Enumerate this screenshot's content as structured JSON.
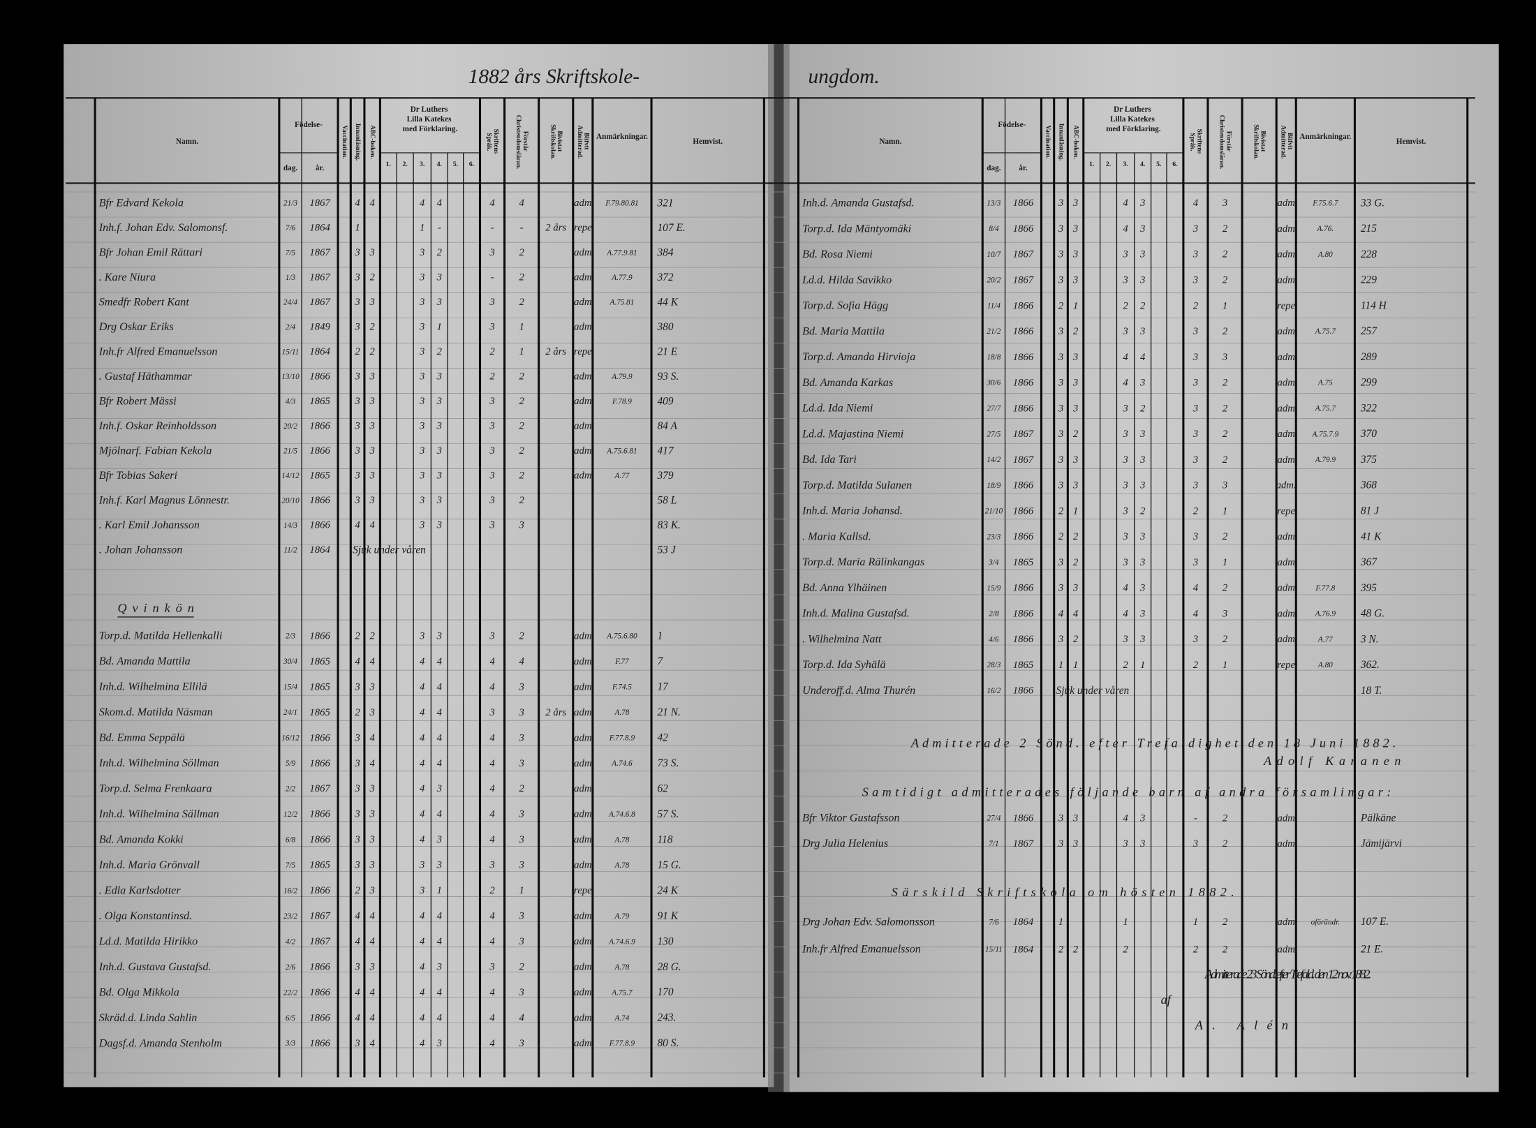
{
  "pages": [
    {
      "title": "1882 års Skriftskole-",
      "headers": [
        "Namn.",
        "Födelse-",
        "dag.",
        "år.",
        "Vaccination.",
        "Innanläsning.",
        "ABC-boken.",
        "Dr Luthers Lilla Katekes med Förklaring.",
        "1.",
        "2.",
        "3.",
        "4.",
        "5.",
        "6.",
        "Skriftens Språk.",
        "Förstår Christendomsläran.",
        "Bivistat Skriftskolan.",
        "Blifvit Admitterad.",
        "Anmärkningar.",
        "Hemvist."
      ],
      "blocks": [
        {
          "row": [
            "Bfr Edvard Kekola",
            "21/3",
            "1867",
            "4",
            "4",
            "4",
            "4",
            "4",
            "4",
            null,
            "adm",
            "F.79.80.81",
            "321"
          ]
        },
        {
          "row": [
            "Inh.f. Johan Edv. Salomonsf.",
            "7/6",
            "1864",
            "1",
            null,
            "1",
            "-",
            "-",
            "-",
            "2 års",
            "repe",
            null,
            "107 E."
          ]
        },
        {
          "row": [
            "Bfr Johan Emil Rättari",
            "7/5",
            "1867",
            "3",
            "3",
            "3",
            "2",
            "3",
            "2",
            null,
            "adm",
            "A.77.9.81",
            "384"
          ]
        },
        {
          "row": [
            ". Kare Niura",
            "1/3",
            "1867",
            "3",
            "2",
            "3",
            "3",
            "-",
            "2",
            null,
            "adm",
            "A.77.9",
            "372"
          ]
        },
        {
          "row": [
            "Smedfr Robert Kant",
            "24/4",
            "1867",
            "3",
            "3",
            "3",
            "3",
            "3",
            "2",
            null,
            "adm",
            "A.75.81",
            "44 K"
          ]
        },
        {
          "row": [
            "Drg Oskar Eriks",
            "2/4",
            "1849",
            "3",
            "2",
            "3",
            "1",
            "3",
            "1",
            null,
            "adm",
            null,
            "380"
          ]
        },
        {
          "row": [
            "Inh.fr Alfred Emanuelsson",
            "15/11",
            "1864",
            "2",
            "2",
            "3",
            "2",
            "2",
            "1",
            "2 års",
            "repe",
            null,
            "21 E"
          ]
        },
        {
          "row": [
            ". Gustaf Häthammar",
            "13/10",
            "1866",
            "3",
            "3",
            "3",
            "3",
            "2",
            "2",
            null,
            "adm",
            "A.79.9",
            "93 S."
          ]
        },
        {
          "row": [
            "Bfr Robert Mässi",
            "4/3",
            "1865",
            "3",
            "3",
            "3",
            "3",
            "3",
            "2",
            null,
            "adm",
            "F.78.9",
            "409"
          ]
        },
        {
          "row": [
            "Inh.f. Oskar Reinholdsson",
            "20/2",
            "1866",
            "3",
            "3",
            "3",
            "3",
            "3",
            "2",
            null,
            "adm",
            null,
            "84 A"
          ]
        },
        {
          "row": [
            "Mjölnarf. Fabian Kekola",
            "21/5",
            "1866",
            "3",
            "3",
            "3",
            "3",
            "3",
            "2",
            null,
            "adm",
            "A.75.6.81",
            "417"
          ]
        },
        {
          "row": [
            "Bfr Tobias Sakeri",
            "14/12",
            "1865",
            "3",
            "3",
            "3",
            "3",
            "3",
            "2",
            null,
            "adm",
            "A.77",
            "379"
          ]
        },
        {
          "row": [
            "Inh.f. Karl Magnus Lönnestr.",
            "20/10",
            "1866",
            "3",
            "3",
            "3",
            "3",
            "3",
            "2",
            null,
            null,
            null,
            "58 L"
          ]
        },
        {
          "row": [
            ". Karl Emil Johansson",
            "14/3",
            "1866",
            "4",
            "4",
            "3",
            "3",
            "3",
            "3",
            null,
            null,
            null,
            "83 K."
          ]
        },
        {
          "row": [
            ". Johan Johansson",
            "11/2",
            "1864",
            "Sjuk under våren",
            null,
            null,
            null,
            null,
            null,
            null,
            null,
            null,
            "53 J"
          ]
        },
        {
          "text": "Qvinkön"
        },
        {
          "row": [
            "Torp.d. Matilda Hellenkalli",
            "2/3",
            "1866",
            "2",
            "2",
            "3",
            "3",
            "3",
            "2",
            null,
            "adm",
            "A.75.6.80",
            "1"
          ]
        },
        {
          "row": [
            "Bd. Amanda Mattila",
            "30/4",
            "1865",
            "4",
            "4",
            "4",
            "4",
            "4",
            "4",
            null,
            "adm",
            "F.77",
            "7"
          ]
        },
        {
          "row": [
            "Inh.d. Wilhelmina Ellilä",
            "15/4",
            "1865",
            "3",
            "3",
            "4",
            "4",
            "4",
            "3",
            null,
            "adm",
            "F.74.5",
            "17"
          ]
        },
        {
          "row": [
            "Skom.d. Matilda Näsman",
            "24/1",
            "1865",
            "2",
            "3",
            "4",
            "4",
            "3",
            "3",
            "2 års",
            "adm",
            "A.78",
            "21 N."
          ]
        },
        {
          "row": [
            "Bd. Emma Seppälä",
            "16/12",
            "1866",
            "3",
            "4",
            "4",
            "4",
            "4",
            "3",
            null,
            "adm",
            "F.77.8.9",
            "42"
          ]
        },
        {
          "row": [
            "Inh.d. Wilhelmina Söllman",
            "5/9",
            "1866",
            "3",
            "4",
            "4",
            "4",
            "4",
            "3",
            null,
            "adm",
            "A.74.6",
            "73 S."
          ]
        },
        {
          "row": [
            "Torp.d. Selma Frenkaara",
            "2/2",
            "1867",
            "3",
            "3",
            "4",
            "3",
            "4",
            "2",
            null,
            "adm",
            null,
            "62"
          ]
        },
        {
          "row": [
            "Inh.d. Wilhelmina Sällman",
            "12/2",
            "1866",
            "3",
            "3",
            "4",
            "4",
            "4",
            "3",
            null,
            "adm",
            "A.74.6.8",
            "57 S."
          ]
        },
        {
          "row": [
            "Bd. Amanda Kokki",
            "6/8",
            "1866",
            "3",
            "3",
            "4",
            "3",
            "4",
            "3",
            null,
            "adm",
            "A.78",
            "118"
          ]
        },
        {
          "row": [
            "Inh.d. Maria Grönvall",
            "7/5",
            "1865",
            "3",
            "3",
            "3",
            "3",
            "3",
            "3",
            null,
            "adm",
            "A.78",
            "15 G."
          ]
        },
        {
          "row": [
            ". Edla Karlsdotter",
            "16/2",
            "1866",
            "2",
            "3",
            "3",
            "1",
            "2",
            "1",
            null,
            "repe",
            null,
            "24 K"
          ]
        },
        {
          "row": [
            ". Olga Konstantinsd.",
            "23/2",
            "1867",
            "4",
            "4",
            "4",
            "4",
            "4",
            "3",
            null,
            "adm",
            "A.79",
            "91 K"
          ]
        },
        {
          "row": [
            "Ld.d. Matilda Hirikko",
            "4/2",
            "1867",
            "4",
            "4",
            "4",
            "4",
            "4",
            "3",
            null,
            "adm",
            "A.74.6.9",
            "130"
          ]
        },
        {
          "row": [
            "Inh.d. Gustava Gustafsd.",
            "2/6",
            "1866",
            "3",
            "3",
            "4",
            "3",
            "3",
            "2",
            null,
            "adm",
            "A.78",
            "28 G."
          ]
        },
        {
          "row": [
            "Bd. Olga Mikkola",
            "22/2",
            "1866",
            "4",
            "4",
            "4",
            "4",
            "4",
            "3",
            null,
            "adm",
            "A.75.7",
            "170"
          ]
        },
        {
          "row": [
            "Skräd.d. Linda Sahlin",
            "6/5",
            "1866",
            "4",
            "4",
            "4",
            "4",
            "4",
            "4",
            null,
            "adm",
            "A.74",
            "243."
          ]
        },
        {
          "row": [
            "Dagsf.d. Amanda Stenholm",
            "3/3",
            "1866",
            "3",
            "4",
            "4",
            "3",
            "4",
            "3",
            null,
            "adm",
            "F.77.8.9",
            "80 S."
          ]
        }
      ]
    },
    {
      "title": "ungdom.",
      "headers": [
        "Namn.",
        "Födelse-",
        "dag.",
        "år.",
        "Vaccination.",
        "Innanläsning.",
        "ABC-boken.",
        "Dr Luthers Lilla Katekes med Förklaring.",
        "1.",
        "2.",
        "3.",
        "4.",
        "5.",
        "6.",
        "Skriftens Språk.",
        "Förstår Christendomsläran.",
        "Bivistat Skriftskolan.",
        "Blifvit Admitterad.",
        "Anmärkningar.",
        "Hemvist."
      ],
      "blocks": [
        {
          "row": [
            "Inh.d. Amanda Gustafsd.",
            "13/3",
            "1866",
            "3",
            "3",
            "4",
            "3",
            "4",
            "3",
            null,
            "adm",
            "F.75.6.7",
            "33 G."
          ]
        },
        {
          "row": [
            "Torp.d. Ida Mäntyomäki",
            "8/4",
            "1866",
            "3",
            "3",
            "4",
            "3",
            "3",
            "2",
            null,
            "adm",
            "A.76.",
            "215"
          ]
        },
        {
          "row": [
            "Bd. Rosa Niemi",
            "10/7",
            "1867",
            "3",
            "3",
            "3",
            "3",
            "3",
            "2",
            null,
            "adm",
            "A.80",
            "228"
          ]
        },
        {
          "row": [
            "Ld.d. Hilda Savikko",
            "20/2",
            "1867",
            "3",
            "3",
            "3",
            "3",
            "3",
            "2",
            null,
            "adm",
            null,
            "229"
          ]
        },
        {
          "row": [
            "Torp.d. Sofia Hägg",
            "11/4",
            "1866",
            "2",
            "1",
            "2",
            "2",
            "2",
            "1",
            null,
            "repe",
            null,
            "114 H"
          ]
        },
        {
          "row": [
            "Bd. Maria Mattila",
            "21/2",
            "1866",
            "3",
            "2",
            "3",
            "3",
            "3",
            "2",
            null,
            "adm",
            "A.75.7",
            "257"
          ]
        },
        {
          "row": [
            "Torp.d. Amanda Hirvioja",
            "18/8",
            "1866",
            "3",
            "3",
            "4",
            "4",
            "3",
            "3",
            null,
            "adm",
            null,
            "289"
          ]
        },
        {
          "row": [
            "Bd. Amanda Karkas",
            "30/6",
            "1866",
            "3",
            "3",
            "4",
            "3",
            "3",
            "2",
            null,
            "adm",
            "A.75",
            "299"
          ]
        },
        {
          "row": [
            "Ld.d. Ida Niemi",
            "27/7",
            "1866",
            "3",
            "3",
            "3",
            "2",
            "3",
            "2",
            null,
            "adm",
            "A.75.7",
            "322"
          ]
        },
        {
          "row": [
            "Ld.d. Majastina Niemi",
            "27/5",
            "1867",
            "3",
            "2",
            "3",
            "3",
            "3",
            "2",
            null,
            "adm",
            "A.75.7.9",
            "370"
          ]
        },
        {
          "row": [
            "Bd. Ida Tari",
            "14/2",
            "1867",
            "3",
            "3",
            "3",
            "3",
            "3",
            "2",
            null,
            "adm",
            "A.79.9",
            "375"
          ]
        },
        {
          "row": [
            "Torp.d. Matilda Sulanen",
            "18/9",
            "1866",
            "3",
            "3",
            "3",
            "3",
            "3",
            "3",
            null,
            "adm.",
            null,
            "368"
          ]
        },
        {
          "row": [
            "Inh.d. Maria Johansd.",
            "21/10",
            "1866",
            "2",
            "1",
            "3",
            "2",
            "2",
            "1",
            null,
            "repe",
            null,
            "81 J"
          ]
        },
        {
          "row": [
            ". Maria Kallsd.",
            "23/3",
            "1866",
            "2",
            "2",
            "3",
            "3",
            "3",
            "2",
            null,
            "adm",
            null,
            "41 K"
          ]
        },
        {
          "row": [
            "Torp.d. Maria Rälinkangas",
            "3/4",
            "1865",
            "3",
            "2",
            "3",
            "3",
            "3",
            "1",
            null,
            "adm",
            null,
            "367"
          ]
        },
        {
          "row": [
            "Bd. Anna Ylhäinen",
            "15/9",
            "1866",
            "3",
            "3",
            "4",
            "3",
            "4",
            "2",
            null,
            "adm",
            "F.77.8",
            "395"
          ]
        },
        {
          "row": [
            "Inh.d. Malina Gustafsd.",
            "2/8",
            "1866",
            "4",
            "4",
            "4",
            "3",
            "4",
            "3",
            null,
            "adm",
            "A.76.9",
            "48 G."
          ]
        },
        {
          "row": [
            ". Wilhelmina Natt",
            "4/6",
            "1866",
            "3",
            "2",
            "3",
            "3",
            "3",
            "2",
            null,
            "adm",
            "A.77",
            "3 N."
          ]
        },
        {
          "row": [
            "Torp.d. Ida Syhälä",
            "28/3",
            "1865",
            "1",
            "1",
            "2",
            "1",
            "2",
            "1",
            null,
            "repe",
            "A.80",
            "362."
          ]
        },
        {
          "row": [
            "Underoff.d. Alma Thurén",
            "16/2",
            "1866",
            "Sjuk under våren",
            null,
            null,
            null,
            null,
            null,
            null,
            null,
            null,
            "18 T."
          ]
        },
        {
          "text": "Admitterade 2 Sönd. efter Trefaldighet den 18 Juni 1882."
        },
        {
          "text": "Adolf Karanen"
        },
        {
          "text": "Samtidigt admitterades följande barn af andra församlingar:"
        },
        {
          "row": [
            "Bfr Viktor Gustafsson",
            "27/4",
            "1866",
            "3",
            "3",
            "4",
            "3",
            "-",
            "2",
            null,
            "adm",
            null,
            "Pälkäne"
          ]
        },
        {
          "row": [
            "Drg Julia Helenius",
            "7/1",
            "1867",
            "3",
            "3",
            "3",
            "3",
            "3",
            "2",
            null,
            "adm",
            null,
            "Jämijärvi"
          ]
        },
        {
          "text": "Särskild Skriftskola om hösten 1882."
        },
        {
          "row": [
            "Drg Johan Edv. Salomonsson",
            "7/6",
            "1864",
            "1",
            null,
            "1",
            null,
            "1",
            "2",
            null,
            "adm",
            "oförändr.",
            "107 E."
          ]
        },
        {
          "row": [
            "Inh.fr Alfred Emanuelsson",
            "15/11",
            "1864",
            "2",
            "2",
            "2",
            null,
            "2",
            "2",
            null,
            "adm",
            null,
            "21 E."
          ]
        },
        {
          "text": "Admitterade 23 Sönd. efter Trefald. den 12 nov. 1882."
        },
        {
          "text": "af"
        },
        {
          "text": "A. Alén"
        }
      ]
    }
  ]
}
